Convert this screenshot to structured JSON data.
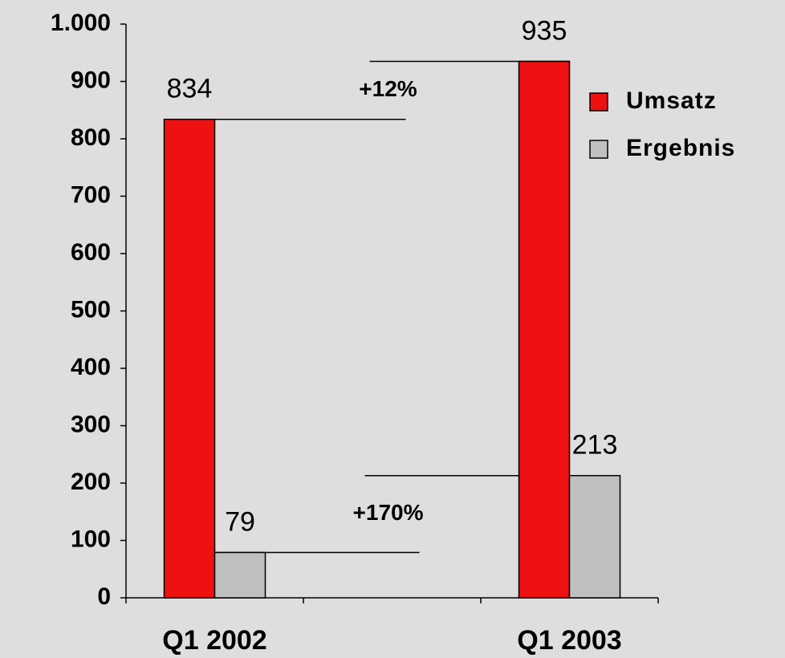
{
  "chart_data": {
    "type": "bar",
    "categories": [
      "Q1 2002",
      null,
      "Q1 2003"
    ],
    "series": [
      {
        "name": "Umsatz",
        "color": "#ee1111",
        "values": [
          834,
          null,
          935
        ]
      },
      {
        "name": "Ergebnis",
        "color": "#c0c0c0",
        "values": [
          79,
          null,
          213
        ]
      }
    ],
    "annotations": [
      "+12%",
      "+170%"
    ],
    "ylim": [
      0,
      1000
    ],
    "yticks": [
      0,
      100,
      200,
      300,
      400,
      500,
      600,
      700,
      800,
      900,
      {
        "value": 1000,
        "label": "1.000"
      }
    ],
    "legend": "right"
  }
}
